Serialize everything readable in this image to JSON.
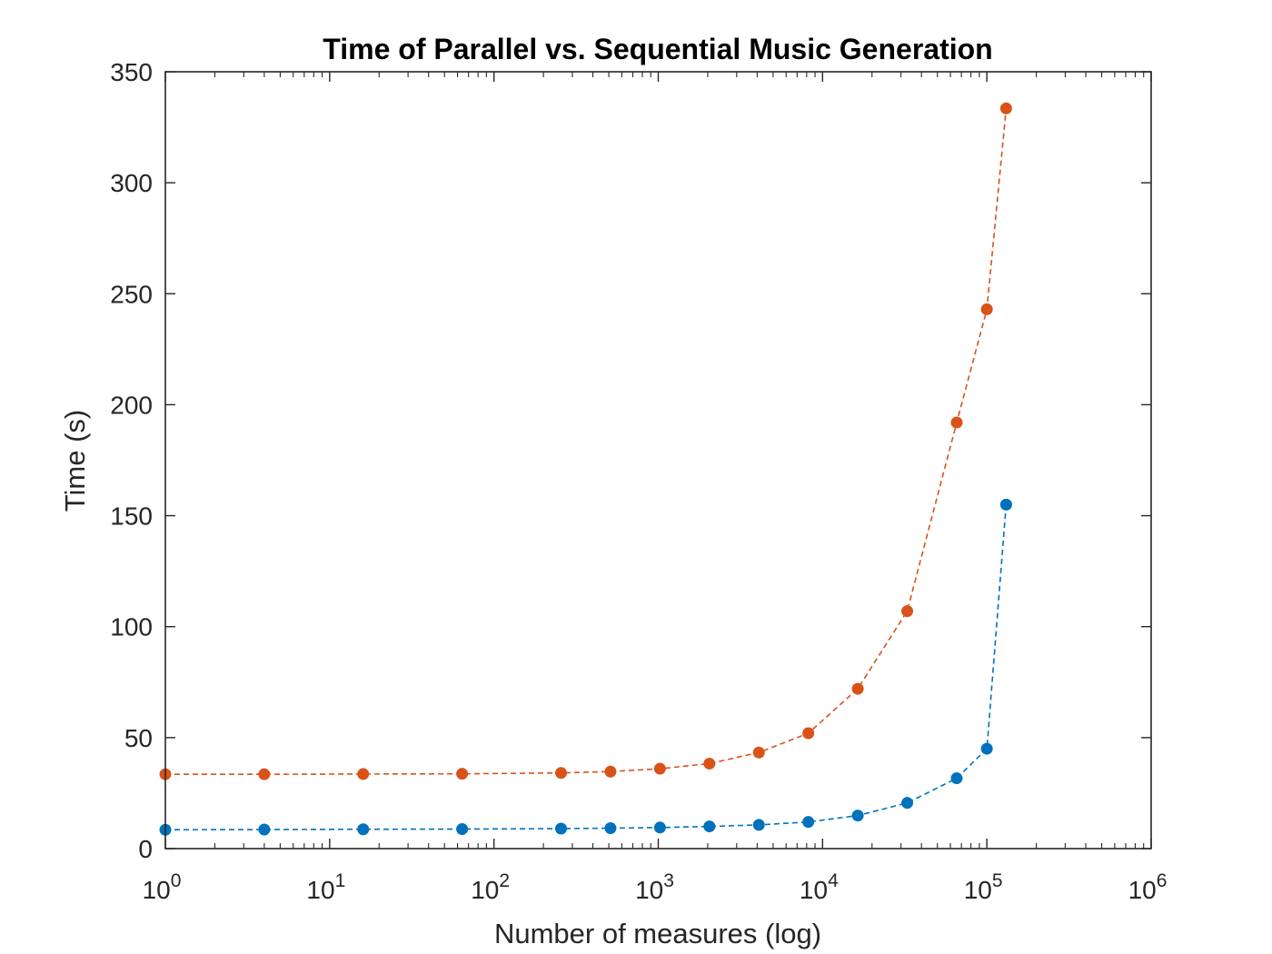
{
  "chart_data": {
    "type": "line",
    "title": "Time of Parallel vs. Sequential Music Generation",
    "xlabel": "Number of measures (log)",
    "ylabel": "Time (s)",
    "x_scale": "log",
    "xlim": [
      1,
      1000000
    ],
    "ylim": [
      0,
      350
    ],
    "x_ticks": [
      {
        "value": 1,
        "base": "10",
        "exp": "0"
      },
      {
        "value": 10,
        "base": "10",
        "exp": "1"
      },
      {
        "value": 100,
        "base": "10",
        "exp": "2"
      },
      {
        "value": 1000,
        "base": "10",
        "exp": "3"
      },
      {
        "value": 10000,
        "base": "10",
        "exp": "4"
      },
      {
        "value": 100000,
        "base": "10",
        "exp": "5"
      },
      {
        "value": 1000000,
        "base": "10",
        "exp": "6"
      }
    ],
    "y_ticks": [
      "0",
      "50",
      "100",
      "150",
      "200",
      "250",
      "300",
      "350"
    ],
    "grid": false,
    "legend": "none",
    "line_style": "dashed",
    "marker": "circle",
    "series": [
      {
        "color": "#0072BD",
        "x": [
          1,
          4,
          16,
          64,
          256,
          512,
          1024,
          2048,
          4096,
          8192,
          16384,
          32768,
          65536,
          100000,
          131072
        ],
        "y": [
          8.5,
          8.6,
          8.7,
          8.8,
          9.0,
          9.2,
          9.5,
          10.0,
          10.7,
          12.0,
          14.9,
          20.6,
          31.7,
          45.0,
          155.0
        ]
      },
      {
        "color": "#D95319",
        "x": [
          1,
          4,
          16,
          64,
          256,
          512,
          1024,
          2048,
          4096,
          8192,
          16384,
          32768,
          65536,
          100000,
          131072
        ],
        "y": [
          33.5,
          33.5,
          33.6,
          33.7,
          34.1,
          34.7,
          36.0,
          38.3,
          43.3,
          52.0,
          72.0,
          107.0,
          192.0,
          243.0,
          333.5
        ]
      }
    ]
  }
}
